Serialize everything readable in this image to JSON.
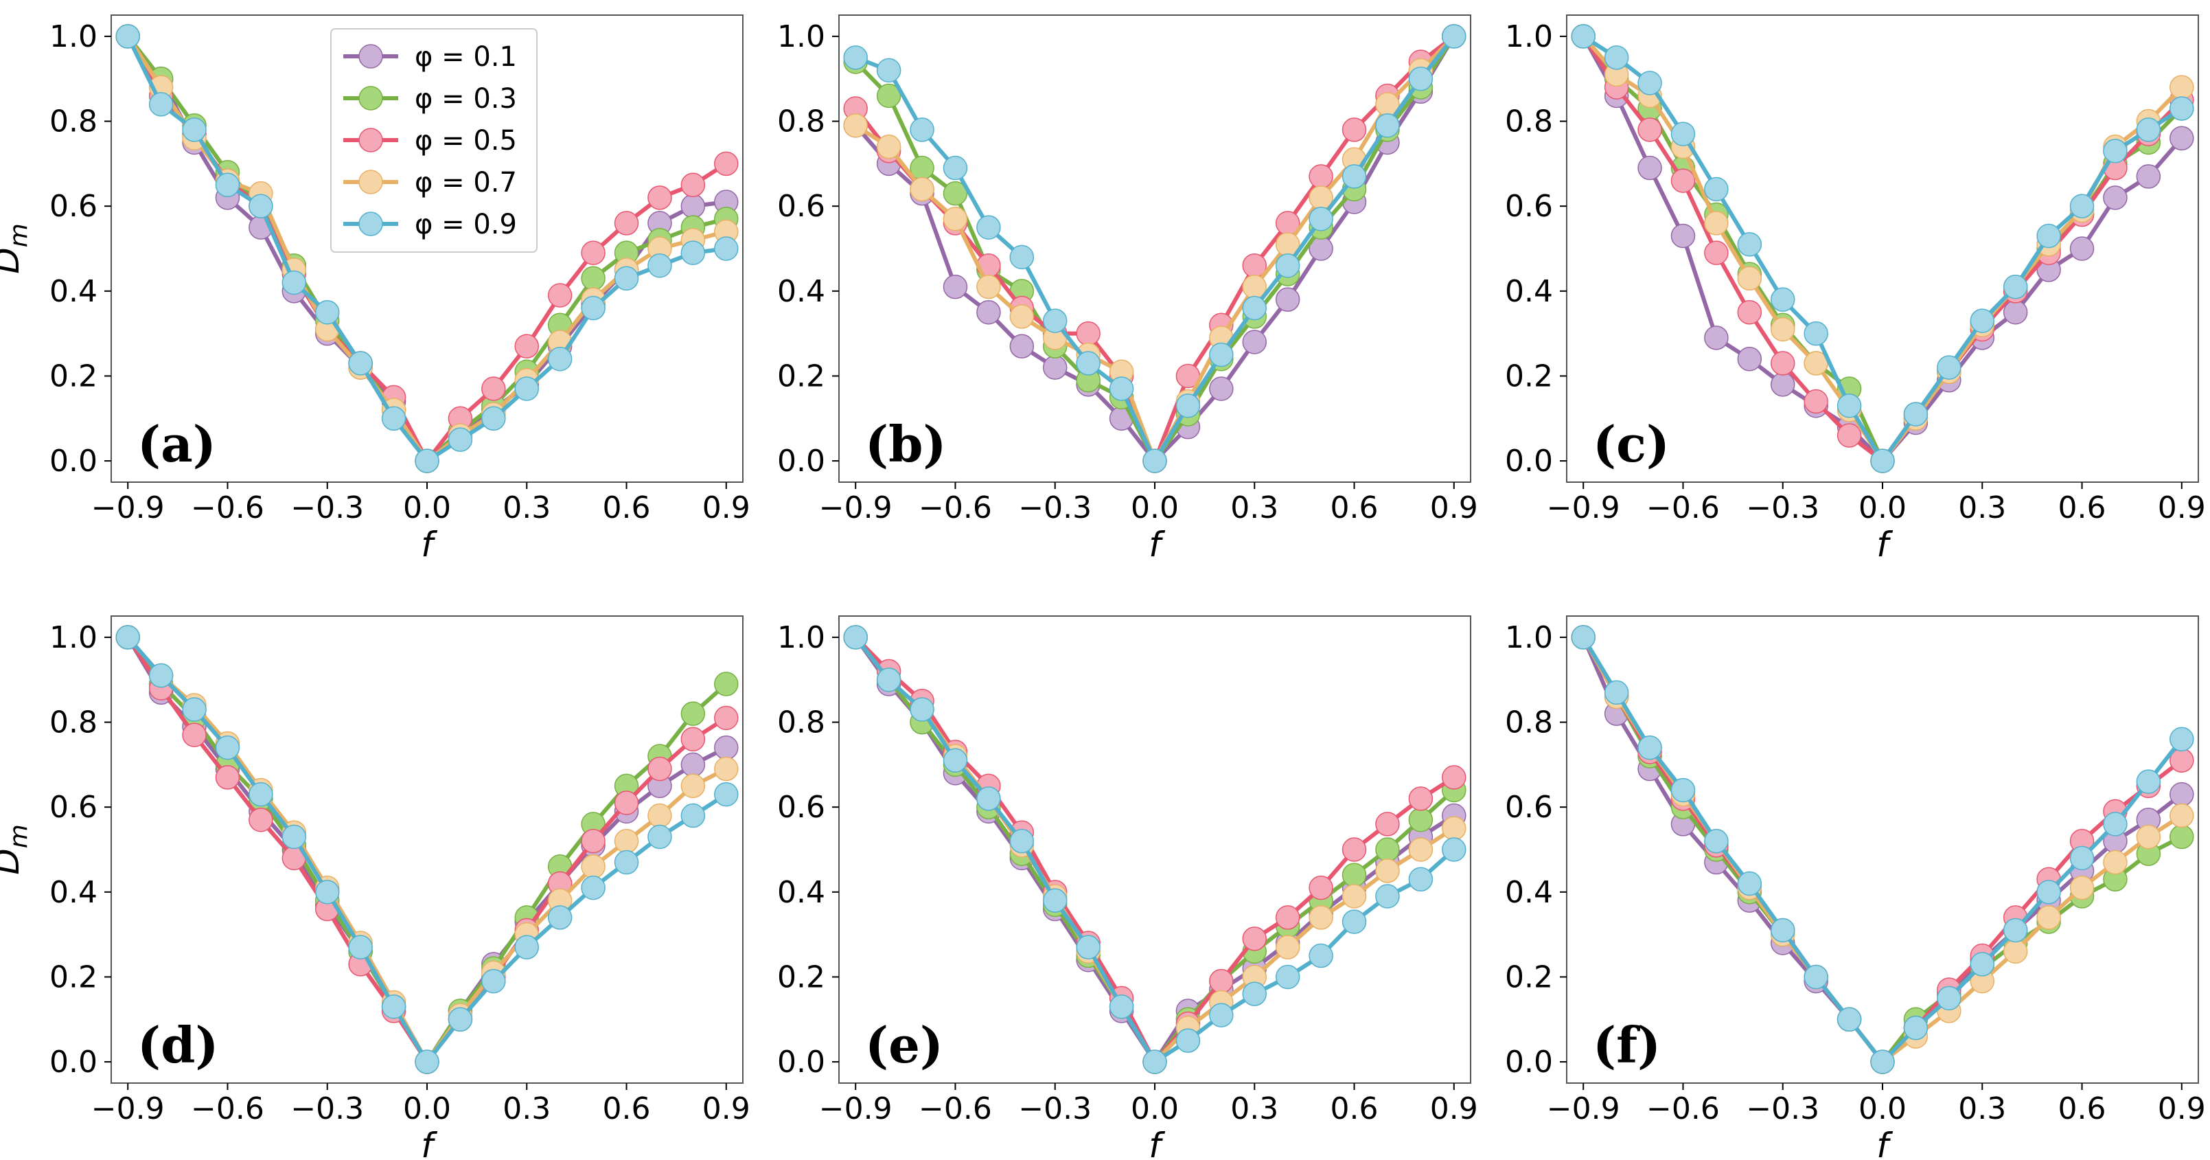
{
  "chart_data": [
    {
      "type": "line",
      "panel_label": "(a)",
      "xlabel": "f",
      "ylabel": "D",
      "ylabel_sub": "m",
      "x": [
        -0.9,
        -0.8,
        -0.7,
        -0.6,
        -0.5,
        -0.4,
        -0.3,
        -0.2,
        -0.1,
        0.0,
        0.1,
        0.2,
        0.3,
        0.4,
        0.5,
        0.6,
        0.7,
        0.8,
        0.9
      ],
      "xlim": [
        -0.95,
        0.95
      ],
      "ylim": [
        -0.05,
        1.05
      ],
      "xticks": [
        "-0.9",
        "-0.6",
        "-0.3",
        "0.0",
        "0.3",
        "0.6",
        "0.9"
      ],
      "yticks": [
        "0.0",
        "0.2",
        "0.4",
        "0.6",
        "0.8",
        "1.0"
      ],
      "show_legend": true,
      "legend_position": "top-center",
      "series": [
        {
          "name": "φ = 0.1",
          "color": "#9467a6",
          "marker": "#cbb0d8",
          "values": [
            1.0,
            0.9,
            0.75,
            0.62,
            0.55,
            0.4,
            0.3,
            0.22,
            0.14,
            0.0,
            0.06,
            0.12,
            0.18,
            0.27,
            0.37,
            0.45,
            0.56,
            0.6,
            0.61
          ]
        },
        {
          "name": "φ = 0.3",
          "color": "#77b043",
          "marker": "#a6d77b",
          "values": [
            1.0,
            0.9,
            0.79,
            0.68,
            0.6,
            0.46,
            0.33,
            0.23,
            0.12,
            0.0,
            0.07,
            0.13,
            0.21,
            0.32,
            0.43,
            0.49,
            0.52,
            0.55,
            0.57
          ]
        },
        {
          "name": "φ = 0.5",
          "color": "#e8566f",
          "marker": "#f5a9b8",
          "values": [
            1.0,
            0.86,
            0.77,
            0.66,
            0.6,
            0.44,
            0.31,
            0.23,
            0.15,
            0.0,
            0.1,
            0.17,
            0.27,
            0.39,
            0.49,
            0.56,
            0.62,
            0.65,
            0.7
          ]
        },
        {
          "name": "φ = 0.7",
          "color": "#e8b064",
          "marker": "#f5d5a5",
          "values": [
            1.0,
            0.88,
            0.76,
            0.66,
            0.63,
            0.45,
            0.31,
            0.22,
            0.12,
            0.0,
            0.06,
            0.11,
            0.19,
            0.28,
            0.38,
            0.45,
            0.5,
            0.52,
            0.54
          ]
        },
        {
          "name": "φ = 0.9",
          "color": "#52b0cc",
          "marker": "#a3d7e8",
          "values": [
            1.0,
            0.84,
            0.78,
            0.65,
            0.6,
            0.42,
            0.35,
            0.23,
            0.1,
            0.0,
            0.05,
            0.1,
            0.17,
            0.24,
            0.36,
            0.43,
            0.46,
            0.49,
            0.5
          ]
        }
      ]
    },
    {
      "type": "line",
      "panel_label": "(b)",
      "xlabel": "f",
      "ylabel": "",
      "ylabel_sub": "",
      "x": [
        -0.9,
        -0.8,
        -0.7,
        -0.6,
        -0.5,
        -0.4,
        -0.3,
        -0.2,
        -0.1,
        0.0,
        0.1,
        0.2,
        0.3,
        0.4,
        0.5,
        0.6,
        0.7,
        0.8,
        0.9
      ],
      "xlim": [
        -0.95,
        0.95
      ],
      "ylim": [
        -0.05,
        1.05
      ],
      "xticks": [
        "-0.9",
        "-0.6",
        "-0.3",
        "0.0",
        "0.3",
        "0.6",
        "0.9"
      ],
      "yticks": [
        "0.0",
        "0.2",
        "0.4",
        "0.6",
        "0.8",
        "1.0"
      ],
      "show_legend": false,
      "series": [
        {
          "name": "φ = 0.1",
          "color": "#9467a6",
          "marker": "#cbb0d8",
          "values": [
            0.79,
            0.7,
            0.63,
            0.41,
            0.35,
            0.27,
            0.22,
            0.18,
            0.1,
            0.0,
            0.08,
            0.17,
            0.28,
            0.38,
            0.5,
            0.61,
            0.75,
            0.87,
            1.0
          ]
        },
        {
          "name": "φ = 0.3",
          "color": "#77b043",
          "marker": "#a6d77b",
          "values": [
            0.94,
            0.86,
            0.69,
            0.63,
            0.45,
            0.4,
            0.27,
            0.19,
            0.15,
            0.0,
            0.11,
            0.24,
            0.34,
            0.44,
            0.55,
            0.64,
            0.78,
            0.88,
            1.0
          ]
        },
        {
          "name": "φ = 0.5",
          "color": "#e8566f",
          "marker": "#f5a9b8",
          "values": [
            0.83,
            0.73,
            0.64,
            0.56,
            0.46,
            0.36,
            0.3,
            0.3,
            0.2,
            0.0,
            0.2,
            0.32,
            0.46,
            0.56,
            0.67,
            0.78,
            0.86,
            0.94,
            1.0
          ]
        },
        {
          "name": "φ = 0.7",
          "color": "#e8b064",
          "marker": "#f5d5a5",
          "values": [
            0.79,
            0.74,
            0.64,
            0.57,
            0.41,
            0.34,
            0.29,
            0.25,
            0.21,
            0.0,
            0.14,
            0.29,
            0.41,
            0.51,
            0.62,
            0.71,
            0.84,
            0.92,
            1.0
          ]
        },
        {
          "name": "φ = 0.9",
          "color": "#52b0cc",
          "marker": "#a3d7e8",
          "values": [
            0.95,
            0.92,
            0.78,
            0.69,
            0.55,
            0.48,
            0.33,
            0.23,
            0.17,
            0.0,
            0.13,
            0.25,
            0.36,
            0.46,
            0.57,
            0.67,
            0.79,
            0.9,
            1.0
          ]
        }
      ]
    },
    {
      "type": "line",
      "panel_label": "(c)",
      "xlabel": "f",
      "ylabel": "",
      "ylabel_sub": "",
      "x": [
        -0.9,
        -0.8,
        -0.7,
        -0.6,
        -0.5,
        -0.4,
        -0.3,
        -0.2,
        -0.1,
        0.0,
        0.1,
        0.2,
        0.3,
        0.4,
        0.5,
        0.6,
        0.7,
        0.8,
        0.9
      ],
      "xlim": [
        -0.95,
        0.95
      ],
      "ylim": [
        -0.05,
        1.05
      ],
      "xticks": [
        "-0.9",
        "-0.6",
        "-0.3",
        "0.0",
        "0.3",
        "0.6",
        "0.9"
      ],
      "yticks": [
        "0.0",
        "0.2",
        "0.4",
        "0.6",
        "0.8",
        "1.0"
      ],
      "show_legend": false,
      "series": [
        {
          "name": "φ = 0.1",
          "color": "#9467a6",
          "marker": "#cbb0d8",
          "values": [
            1.0,
            0.86,
            0.69,
            0.53,
            0.29,
            0.24,
            0.18,
            0.13,
            0.08,
            0.0,
            0.09,
            0.19,
            0.29,
            0.35,
            0.45,
            0.5,
            0.62,
            0.67,
            0.76
          ]
        },
        {
          "name": "φ = 0.3",
          "color": "#77b043",
          "marker": "#a6d77b",
          "values": [
            1.0,
            0.9,
            0.83,
            0.69,
            0.58,
            0.44,
            0.32,
            0.23,
            0.17,
            0.0,
            0.11,
            0.21,
            0.32,
            0.4,
            0.5,
            0.58,
            0.7,
            0.75,
            0.83
          ]
        },
        {
          "name": "φ = 0.5",
          "color": "#e8566f",
          "marker": "#f5a9b8",
          "values": [
            1.0,
            0.88,
            0.78,
            0.66,
            0.49,
            0.35,
            0.23,
            0.14,
            0.06,
            0.0,
            0.1,
            0.21,
            0.31,
            0.4,
            0.49,
            0.58,
            0.69,
            0.77,
            0.85
          ]
        },
        {
          "name": "φ = 0.7",
          "color": "#e8b064",
          "marker": "#f5d5a5",
          "values": [
            1.0,
            0.91,
            0.86,
            0.74,
            0.56,
            0.43,
            0.31,
            0.23,
            0.12,
            0.0,
            0.1,
            0.21,
            0.32,
            0.41,
            0.51,
            0.59,
            0.74,
            0.8,
            0.88
          ]
        },
        {
          "name": "φ = 0.9",
          "color": "#52b0cc",
          "marker": "#a3d7e8",
          "values": [
            1.0,
            0.95,
            0.89,
            0.77,
            0.64,
            0.51,
            0.38,
            0.3,
            0.13,
            0.0,
            0.11,
            0.22,
            0.33,
            0.41,
            0.53,
            0.6,
            0.73,
            0.78,
            0.83
          ]
        }
      ]
    },
    {
      "type": "line",
      "panel_label": "(d)",
      "xlabel": "f",
      "ylabel": "D",
      "ylabel_sub": "m",
      "x": [
        -0.9,
        -0.8,
        -0.7,
        -0.6,
        -0.5,
        -0.4,
        -0.3,
        -0.2,
        -0.1,
        0.0,
        0.1,
        0.2,
        0.3,
        0.4,
        0.5,
        0.6,
        0.7,
        0.8,
        0.9
      ],
      "xlim": [
        -0.95,
        0.95
      ],
      "ylim": [
        -0.05,
        1.05
      ],
      "xticks": [
        "-0.9",
        "-0.6",
        "-0.3",
        "0.0",
        "0.3",
        "0.6",
        "0.9"
      ],
      "yticks": [
        "0.0",
        "0.2",
        "0.4",
        "0.6",
        "0.8",
        "1.0"
      ],
      "show_legend": false,
      "series": [
        {
          "name": "φ = 0.1",
          "color": "#9467a6",
          "marker": "#cbb0d8",
          "values": [
            1.0,
            0.87,
            0.79,
            0.69,
            0.59,
            0.5,
            0.37,
            0.26,
            0.13,
            0.0,
            0.12,
            0.23,
            0.33,
            0.42,
            0.51,
            0.59,
            0.65,
            0.7,
            0.74
          ]
        },
        {
          "name": "φ = 0.3",
          "color": "#77b043",
          "marker": "#a6d77b",
          "values": [
            1.0,
            0.89,
            0.81,
            0.7,
            0.62,
            0.51,
            0.38,
            0.26,
            0.13,
            0.0,
            0.12,
            0.22,
            0.34,
            0.46,
            0.56,
            0.65,
            0.72,
            0.82,
            0.89
          ]
        },
        {
          "name": "φ = 0.5",
          "color": "#e8566f",
          "marker": "#f5a9b8",
          "values": [
            1.0,
            0.88,
            0.77,
            0.67,
            0.57,
            0.48,
            0.36,
            0.23,
            0.12,
            0.0,
            0.1,
            0.2,
            0.31,
            0.42,
            0.52,
            0.61,
            0.69,
            0.76,
            0.81
          ]
        },
        {
          "name": "φ = 0.7",
          "color": "#e8b064",
          "marker": "#f5d5a5",
          "values": [
            1.0,
            0.91,
            0.84,
            0.75,
            0.64,
            0.54,
            0.41,
            0.28,
            0.14,
            0.0,
            0.11,
            0.21,
            0.3,
            0.38,
            0.46,
            0.52,
            0.58,
            0.65,
            0.69
          ]
        },
        {
          "name": "φ = 0.9",
          "color": "#52b0cc",
          "marker": "#a3d7e8",
          "values": [
            1.0,
            0.91,
            0.83,
            0.74,
            0.63,
            0.53,
            0.4,
            0.27,
            0.13,
            0.0,
            0.1,
            0.19,
            0.27,
            0.34,
            0.41,
            0.47,
            0.53,
            0.58,
            0.63
          ]
        }
      ]
    },
    {
      "type": "line",
      "panel_label": "(e)",
      "xlabel": "f",
      "ylabel": "",
      "ylabel_sub": "",
      "x": [
        -0.9,
        -0.8,
        -0.7,
        -0.6,
        -0.5,
        -0.4,
        -0.3,
        -0.2,
        -0.1,
        0.0,
        0.1,
        0.2,
        0.3,
        0.4,
        0.5,
        0.6,
        0.7,
        0.8,
        0.9
      ],
      "xlim": [
        -0.95,
        0.95
      ],
      "ylim": [
        -0.05,
        1.05
      ],
      "xticks": [
        "-0.9",
        "-0.6",
        "-0.3",
        "0.0",
        "0.3",
        "0.6",
        "0.9"
      ],
      "yticks": [
        "0.0",
        "0.2",
        "0.4",
        "0.6",
        "0.8",
        "1.0"
      ],
      "show_legend": false,
      "series": [
        {
          "name": "φ = 0.1",
          "color": "#9467a6",
          "marker": "#cbb0d8",
          "values": [
            1.0,
            0.89,
            0.8,
            0.68,
            0.59,
            0.48,
            0.36,
            0.24,
            0.12,
            0.0,
            0.12,
            0.17,
            0.22,
            0.28,
            0.35,
            0.41,
            0.47,
            0.53,
            0.58
          ]
        },
        {
          "name": "φ = 0.3",
          "color": "#77b043",
          "marker": "#a6d77b",
          "values": [
            1.0,
            0.9,
            0.8,
            0.7,
            0.6,
            0.49,
            0.37,
            0.25,
            0.13,
            0.0,
            0.1,
            0.19,
            0.26,
            0.32,
            0.38,
            0.44,
            0.5,
            0.57,
            0.64
          ]
        },
        {
          "name": "φ = 0.5",
          "color": "#e8566f",
          "marker": "#f5a9b8",
          "values": [
            1.0,
            0.92,
            0.85,
            0.73,
            0.65,
            0.54,
            0.4,
            0.28,
            0.15,
            0.0,
            0.09,
            0.19,
            0.29,
            0.34,
            0.41,
            0.5,
            0.56,
            0.62,
            0.67
          ]
        },
        {
          "name": "φ = 0.7",
          "color": "#e8b064",
          "marker": "#f5d5a5",
          "values": [
            1.0,
            0.9,
            0.83,
            0.72,
            0.62,
            0.51,
            0.39,
            0.26,
            0.13,
            0.0,
            0.08,
            0.14,
            0.2,
            0.27,
            0.34,
            0.39,
            0.45,
            0.5,
            0.55
          ]
        },
        {
          "name": "φ = 0.9",
          "color": "#52b0cc",
          "marker": "#a3d7e8",
          "values": [
            1.0,
            0.9,
            0.83,
            0.71,
            0.62,
            0.52,
            0.38,
            0.27,
            0.13,
            0.0,
            0.05,
            0.11,
            0.16,
            0.2,
            0.25,
            0.33,
            0.39,
            0.43,
            0.5
          ]
        }
      ]
    },
    {
      "type": "line",
      "panel_label": "(f)",
      "xlabel": "f",
      "ylabel": "",
      "ylabel_sub": "",
      "x": [
        -0.9,
        -0.8,
        -0.7,
        -0.6,
        -0.5,
        -0.4,
        -0.3,
        -0.2,
        -0.1,
        0.0,
        0.1,
        0.2,
        0.3,
        0.4,
        0.5,
        0.6,
        0.7,
        0.8,
        0.9
      ],
      "xlim": [
        -0.95,
        0.95
      ],
      "ylim": [
        -0.05,
        1.05
      ],
      "xticks": [
        "-0.9",
        "-0.6",
        "-0.3",
        "0.0",
        "0.3",
        "0.6",
        "0.9"
      ],
      "yticks": [
        "0.0",
        "0.2",
        "0.4",
        "0.6",
        "0.8",
        "1.0"
      ],
      "show_legend": false,
      "series": [
        {
          "name": "φ = 0.1",
          "color": "#9467a6",
          "marker": "#cbb0d8",
          "values": [
            1.0,
            0.82,
            0.69,
            0.56,
            0.47,
            0.38,
            0.28,
            0.19,
            0.1,
            0.0,
            0.08,
            0.16,
            0.24,
            0.31,
            0.38,
            0.45,
            0.52,
            0.57,
            0.63
          ]
        },
        {
          "name": "φ = 0.3",
          "color": "#77b043",
          "marker": "#a6d77b",
          "values": [
            1.0,
            0.86,
            0.72,
            0.6,
            0.5,
            0.4,
            0.3,
            0.2,
            0.1,
            0.0,
            0.1,
            0.16,
            0.22,
            0.28,
            0.33,
            0.39,
            0.43,
            0.49,
            0.53
          ]
        },
        {
          "name": "φ = 0.5",
          "color": "#e8566f",
          "marker": "#f5a9b8",
          "values": [
            1.0,
            0.86,
            0.73,
            0.62,
            0.51,
            0.41,
            0.31,
            0.2,
            0.1,
            0.0,
            0.08,
            0.17,
            0.25,
            0.34,
            0.43,
            0.52,
            0.59,
            0.65,
            0.71
          ]
        },
        {
          "name": "φ = 0.7",
          "color": "#e8b064",
          "marker": "#f5d5a5",
          "values": [
            1.0,
            0.86,
            0.74,
            0.63,
            0.52,
            0.41,
            0.3,
            0.2,
            0.1,
            0.0,
            0.06,
            0.12,
            0.19,
            0.26,
            0.34,
            0.41,
            0.47,
            0.53,
            0.58
          ]
        },
        {
          "name": "φ = 0.9",
          "color": "#52b0cc",
          "marker": "#a3d7e8",
          "values": [
            1.0,
            0.87,
            0.74,
            0.64,
            0.52,
            0.42,
            0.31,
            0.2,
            0.1,
            0.0,
            0.08,
            0.15,
            0.23,
            0.31,
            0.4,
            0.48,
            0.56,
            0.66,
            0.76
          ]
        }
      ]
    }
  ]
}
